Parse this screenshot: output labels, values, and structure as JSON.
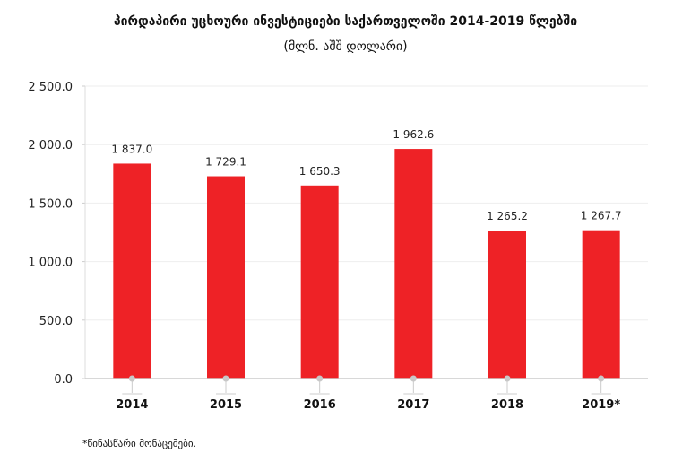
{
  "chart_data": {
    "type": "bar",
    "title": "პირდაპირი უცხოური ინვესტიციები საქართველოში  2014-2019 წლებში",
    "subtitle": "(მლნ. აშშ დოლარი)",
    "categories": [
      "2014",
      "2015",
      "2016",
      "2017",
      "2018",
      "2019*"
    ],
    "values": [
      1837.0,
      1729.1,
      1650.3,
      1962.6,
      1265.2,
      1267.7
    ],
    "data_labels": [
      "1 837.0",
      "1 729.1",
      "1 650.3",
      "1 962.6",
      "1 265.2",
      "1 267.7"
    ],
    "yticks": [
      0,
      500,
      1000,
      1500,
      2000,
      2500
    ],
    "ytick_labels": [
      "0.0",
      "500.0",
      "1 000.0",
      "1 500.0",
      "2 000.0",
      "2 500.0"
    ],
    "ylim": [
      0,
      2500
    ],
    "xlabel": "",
    "ylabel": "",
    "grid": true,
    "bar_color": "#ee2226",
    "footnote": "*წინასწარი მონაცემები."
  }
}
